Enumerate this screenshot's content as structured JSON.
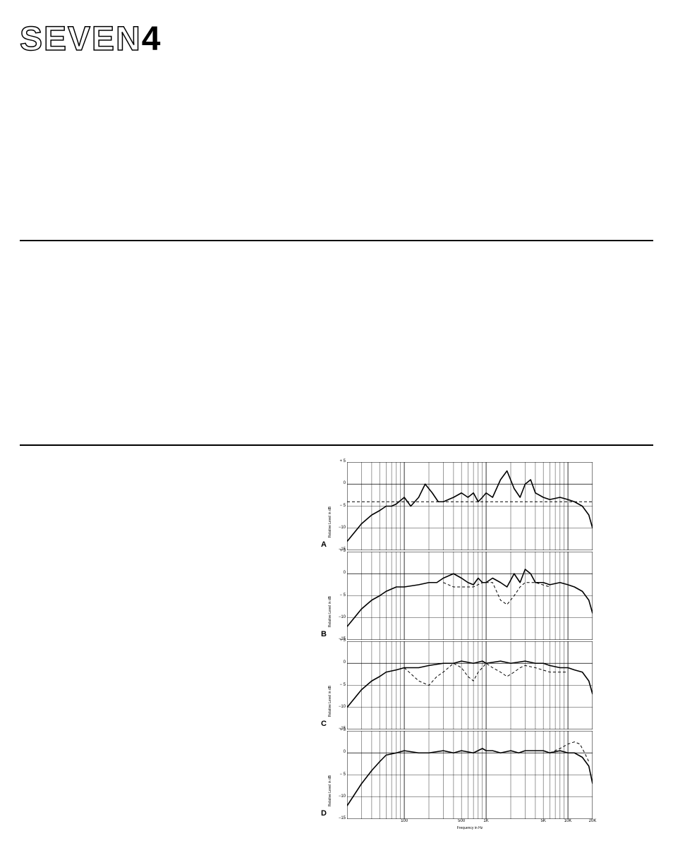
{
  "logo": {
    "outline": "SEVEN",
    "solid": "4"
  },
  "charts": {
    "ylabel": "Relative Level in dB",
    "xlabel": "Frequency in Hz",
    "ylim": [
      -15,
      5
    ],
    "yticks": [
      5,
      0,
      -5,
      -10,
      -15
    ],
    "ytick_labels": [
      "+ 5",
      "0",
      "− 5",
      "−10",
      "−15"
    ],
    "xticks_log": [
      20,
      50,
      100,
      200,
      500,
      1000,
      2000,
      5000,
      10000,
      20000
    ],
    "xtick_labels_shown": {
      "100": "100",
      "500": "500",
      "1000": "1K",
      "5000": "5K",
      "10000": "10K",
      "20000": "20K"
    },
    "grid_color": "#000000",
    "background_color": "#ffffff",
    "line_color": "#000000",
    "dash_color": "#000000",
    "line_width": 1.6,
    "dash_width": 1.0,
    "panels": [
      {
        "letter": "A",
        "solid": [
          [
            20,
            -13
          ],
          [
            30,
            -9
          ],
          [
            40,
            -7
          ],
          [
            50,
            -6
          ],
          [
            60,
            -5
          ],
          [
            70,
            -5
          ],
          [
            80,
            -4.5
          ],
          [
            100,
            -3
          ],
          [
            120,
            -5
          ],
          [
            150,
            -3
          ],
          [
            180,
            0
          ],
          [
            220,
            -2
          ],
          [
            260,
            -4
          ],
          [
            300,
            -4
          ],
          [
            400,
            -3
          ],
          [
            500,
            -2
          ],
          [
            600,
            -3
          ],
          [
            700,
            -2
          ],
          [
            800,
            -4
          ],
          [
            900,
            -3
          ],
          [
            1000,
            -2
          ],
          [
            1200,
            -3
          ],
          [
            1500,
            1
          ],
          [
            1800,
            3
          ],
          [
            2200,
            -1
          ],
          [
            2600,
            -3
          ],
          [
            3000,
            0
          ],
          [
            3500,
            1
          ],
          [
            4000,
            -2
          ],
          [
            5000,
            -3
          ],
          [
            6000,
            -3.5
          ],
          [
            8000,
            -3
          ],
          [
            10000,
            -3.5
          ],
          [
            12000,
            -4
          ],
          [
            15000,
            -5
          ],
          [
            18000,
            -7
          ],
          [
            20000,
            -10
          ]
        ],
        "dashed": [
          [
            20,
            -4
          ],
          [
            20000,
            -4
          ]
        ]
      },
      {
        "letter": "B",
        "solid": [
          [
            20,
            -12
          ],
          [
            30,
            -8
          ],
          [
            40,
            -6
          ],
          [
            50,
            -5
          ],
          [
            60,
            -4
          ],
          [
            80,
            -3
          ],
          [
            100,
            -3
          ],
          [
            150,
            -2.5
          ],
          [
            200,
            -2
          ],
          [
            250,
            -2
          ],
          [
            300,
            -1
          ],
          [
            400,
            0
          ],
          [
            500,
            -1
          ],
          [
            600,
            -2
          ],
          [
            700,
            -2.5
          ],
          [
            800,
            -1
          ],
          [
            900,
            -2
          ],
          [
            1000,
            -2
          ],
          [
            1200,
            -1
          ],
          [
            1500,
            -2
          ],
          [
            1800,
            -3
          ],
          [
            2200,
            0
          ],
          [
            2600,
            -2
          ],
          [
            3000,
            1
          ],
          [
            3500,
            0
          ],
          [
            4000,
            -2
          ],
          [
            5000,
            -2
          ],
          [
            6000,
            -2.5
          ],
          [
            8000,
            -2
          ],
          [
            10000,
            -2.5
          ],
          [
            12000,
            -3
          ],
          [
            15000,
            -4
          ],
          [
            18000,
            -6
          ],
          [
            20000,
            -9
          ]
        ],
        "dashed": [
          [
            300,
            -2
          ],
          [
            400,
            -3
          ],
          [
            500,
            -3
          ],
          [
            700,
            -3
          ],
          [
            900,
            -2
          ],
          [
            1200,
            -2
          ],
          [
            1500,
            -6
          ],
          [
            1800,
            -7
          ],
          [
            2200,
            -5
          ],
          [
            2600,
            -3
          ],
          [
            3000,
            -2
          ],
          [
            4000,
            -2
          ],
          [
            6000,
            -3
          ]
        ]
      },
      {
        "letter": "C",
        "solid": [
          [
            20,
            -10
          ],
          [
            30,
            -6
          ],
          [
            40,
            -4
          ],
          [
            50,
            -3
          ],
          [
            60,
            -2
          ],
          [
            80,
            -1.5
          ],
          [
            100,
            -1
          ],
          [
            150,
            -1
          ],
          [
            200,
            -0.5
          ],
          [
            300,
            0
          ],
          [
            400,
            0
          ],
          [
            500,
            0.5
          ],
          [
            700,
            0
          ],
          [
            900,
            0.5
          ],
          [
            1000,
            0
          ],
          [
            1500,
            0.5
          ],
          [
            2000,
            0
          ],
          [
            3000,
            0.5
          ],
          [
            4000,
            0
          ],
          [
            5000,
            0
          ],
          [
            6000,
            -0.5
          ],
          [
            8000,
            -1
          ],
          [
            10000,
            -1
          ],
          [
            12000,
            -1.5
          ],
          [
            15000,
            -2
          ],
          [
            18000,
            -4
          ],
          [
            20000,
            -7
          ]
        ],
        "dashed": [
          [
            100,
            -1
          ],
          [
            150,
            -4
          ],
          [
            200,
            -5
          ],
          [
            250,
            -3
          ],
          [
            300,
            -2
          ],
          [
            400,
            0
          ],
          [
            500,
            -1
          ],
          [
            600,
            -3
          ],
          [
            700,
            -4
          ],
          [
            800,
            -2
          ],
          [
            900,
            -1
          ],
          [
            1000,
            0
          ],
          [
            1200,
            -1
          ],
          [
            1500,
            -2
          ],
          [
            1800,
            -3
          ],
          [
            2200,
            -2
          ],
          [
            2600,
            -1
          ],
          [
            3000,
            -0.5
          ],
          [
            4000,
            -1
          ],
          [
            6000,
            -2
          ],
          [
            8000,
            -2
          ],
          [
            10000,
            -2
          ]
        ]
      },
      {
        "letter": "D",
        "solid": [
          [
            20,
            -12
          ],
          [
            30,
            -7
          ],
          [
            40,
            -4
          ],
          [
            50,
            -2
          ],
          [
            60,
            -0.5
          ],
          [
            80,
            0
          ],
          [
            100,
            0.5
          ],
          [
            150,
            0
          ],
          [
            200,
            0
          ],
          [
            300,
            0.5
          ],
          [
            400,
            0
          ],
          [
            500,
            0.5
          ],
          [
            700,
            0
          ],
          [
            900,
            1
          ],
          [
            1000,
            0.5
          ],
          [
            1200,
            0.5
          ],
          [
            1500,
            0
          ],
          [
            2000,
            0.5
          ],
          [
            2500,
            0
          ],
          [
            3000,
            0.5
          ],
          [
            4000,
            0.5
          ],
          [
            5000,
            0.5
          ],
          [
            6000,
            0
          ],
          [
            8000,
            0.5
          ],
          [
            10000,
            0
          ],
          [
            12000,
            0
          ],
          [
            15000,
            -1
          ],
          [
            18000,
            -3
          ],
          [
            20000,
            -7
          ]
        ],
        "dashed": [
          [
            6000,
            0
          ],
          [
            8000,
            1
          ],
          [
            10000,
            2
          ],
          [
            12000,
            2.5
          ],
          [
            14000,
            2
          ],
          [
            16000,
            0
          ],
          [
            18000,
            -2
          ]
        ]
      }
    ]
  }
}
